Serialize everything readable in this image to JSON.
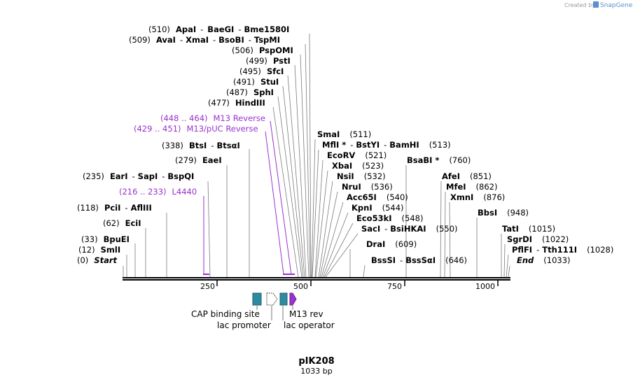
{
  "credit": {
    "prefix": "Created by",
    "brand": "SnapGene"
  },
  "plasmid": {
    "name": "pIK208",
    "length_label": "1033 bp"
  },
  "axis": {
    "ticks": [
      "250",
      "500",
      "750",
      "1000"
    ]
  },
  "upper_sites": [
    {
      "num": "(510)",
      "names": [
        "ApaI",
        "BaeGI",
        "Bme1580I"
      ]
    },
    {
      "num": "(509)",
      "names": [
        "AvaI",
        "XmaI",
        "BsoBI",
        "TspMI"
      ]
    },
    {
      "num": "(506)",
      "names": [
        "PspOMI"
      ]
    },
    {
      "num": "(499)",
      "names": [
        "PstI"
      ]
    },
    {
      "num": "(495)",
      "names": [
        "SfcI"
      ]
    },
    {
      "num": "(491)",
      "names": [
        "StuI"
      ]
    },
    {
      "num": "(487)",
      "names": [
        "SphI"
      ]
    },
    {
      "num": "(477)",
      "names": [
        "HindIII"
      ]
    }
  ],
  "primers": [
    {
      "num": "(448 .. 464)",
      "name": "M13 Reverse"
    },
    {
      "num": "(429 .. 451)",
      "name": "M13/pUC Reverse"
    },
    {
      "num": "(216 .. 233)",
      "name": "L4440"
    }
  ],
  "left_sites": [
    {
      "num": "(338)",
      "names": [
        "BtsI",
        "BtsαI"
      ]
    },
    {
      "num": "(279)",
      "names": [
        "EaeI"
      ]
    },
    {
      "num": "(235)",
      "names": [
        "EarI",
        "SapI",
        "BspQI"
      ]
    },
    {
      "num": "(118)",
      "names": [
        "PciI",
        "AflIII"
      ]
    },
    {
      "num": "(62)",
      "names": [
        "EciI"
      ]
    },
    {
      "num": "(33)",
      "names": [
        "BpuEI"
      ]
    },
    {
      "num": "(12)",
      "names": [
        "SmlI"
      ]
    },
    {
      "num": "(0)",
      "names": [
        "Start"
      ]
    }
  ],
  "right_sites": [
    {
      "num": "(511)",
      "names": [
        "SmaI"
      ]
    },
    {
      "num": "(513)",
      "names": [
        "MflI *",
        "BstYI",
        "BamHI"
      ]
    },
    {
      "num": "(521)",
      "names": [
        "EcoRV"
      ]
    },
    {
      "num": "(523)",
      "names": [
        "XbaI"
      ]
    },
    {
      "num": "(532)",
      "names": [
        "NsiI"
      ]
    },
    {
      "num": "(536)",
      "names": [
        "NruI"
      ]
    },
    {
      "num": "(540)",
      "names": [
        "Acc65I"
      ]
    },
    {
      "num": "(544)",
      "names": [
        "KpnI"
      ]
    },
    {
      "num": "(548)",
      "names": [
        "Eco53kI"
      ]
    },
    {
      "num": "(550)",
      "names": [
        "SacI",
        "BsiHKAI"
      ]
    },
    {
      "num": "(609)",
      "names": [
        "DraI"
      ]
    },
    {
      "num": "(646)",
      "names": [
        "BssSI",
        "BssSαI"
      ]
    },
    {
      "num": "(760)",
      "names": [
        "BsaBI *"
      ]
    },
    {
      "num": "(851)",
      "names": [
        "AfeI"
      ]
    },
    {
      "num": "(862)",
      "names": [
        "MfeI"
      ]
    },
    {
      "num": "(876)",
      "names": [
        "XmnI"
      ]
    },
    {
      "num": "(948)",
      "names": [
        "BbsI"
      ]
    },
    {
      "num": "(1015)",
      "names": [
        "TatI"
      ]
    },
    {
      "num": "(1022)",
      "names": [
        "SgrDI"
      ]
    },
    {
      "num": "(1028)",
      "names": [
        "PflFI",
        "Tth111I"
      ]
    },
    {
      "num": "(1033)",
      "names": [
        "End"
      ]
    }
  ],
  "features": [
    {
      "name": "CAP binding site",
      "color": "#2e8a9e"
    },
    {
      "name": "lac promoter",
      "color": "#ffffff"
    },
    {
      "name": "lac operator",
      "color": "#2e8a9e"
    },
    {
      "name": "M13 rev",
      "color": "#9a32cd"
    }
  ]
}
